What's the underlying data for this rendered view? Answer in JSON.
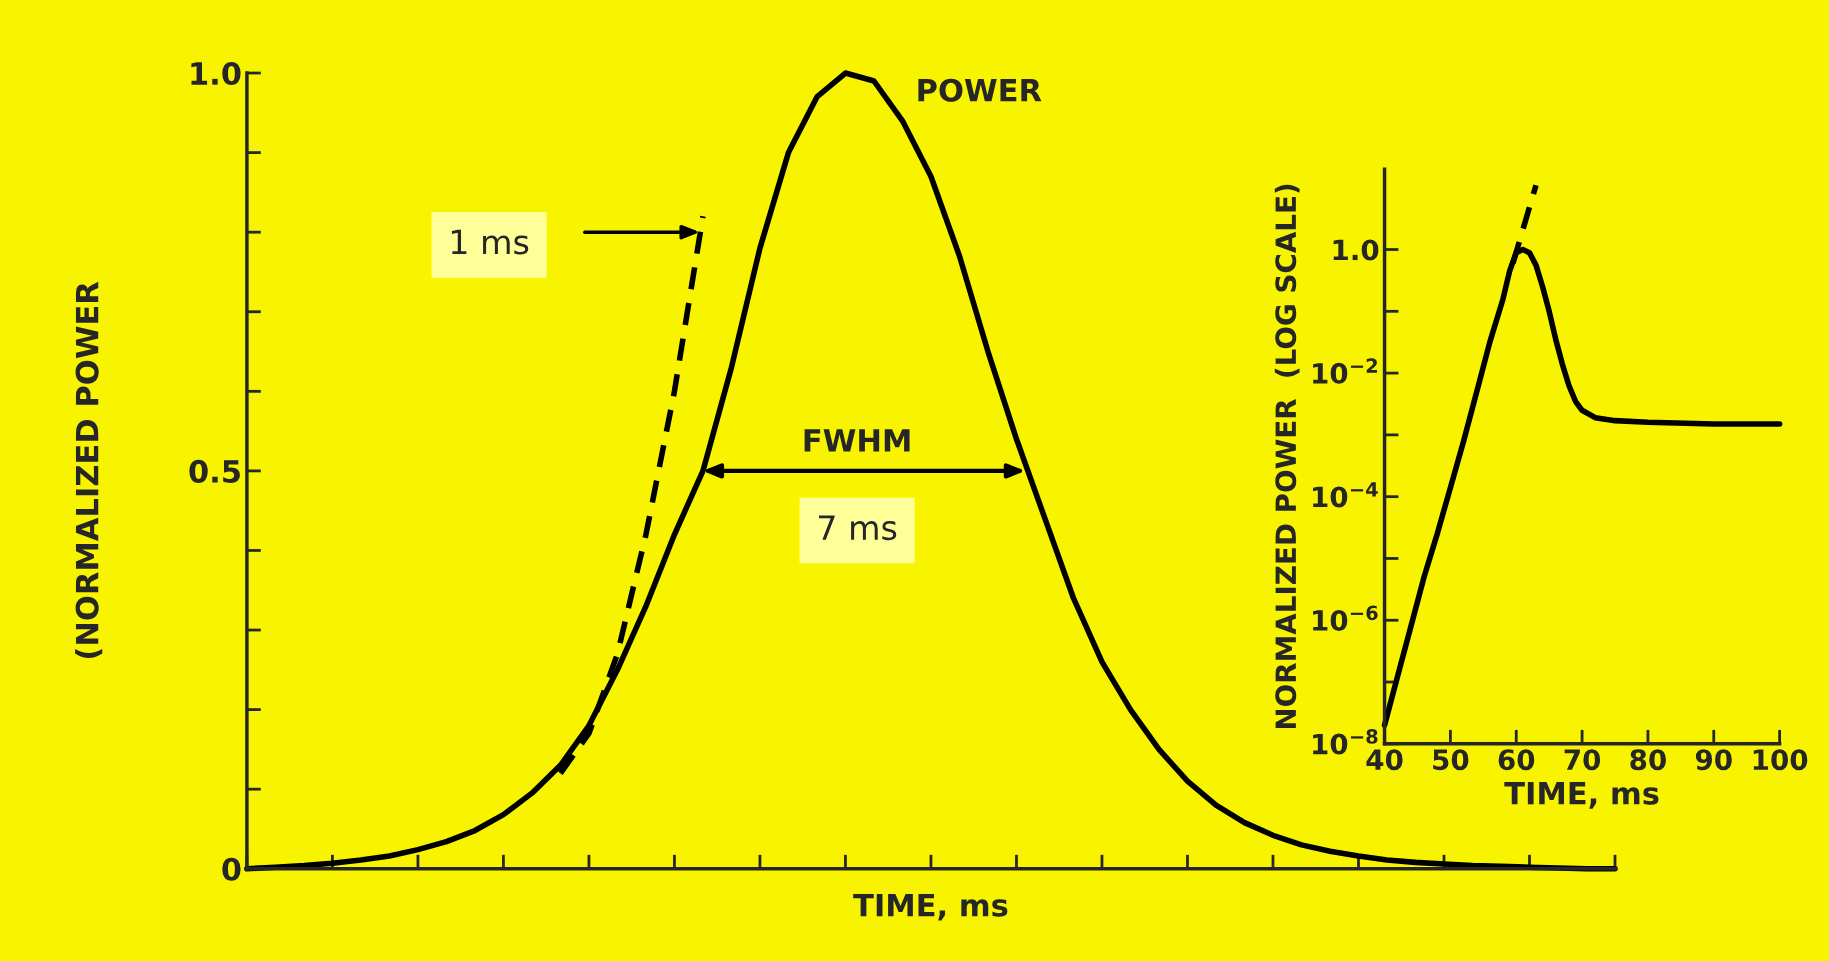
{
  "chart_data": [
    {
      "type": "line",
      "xlabel": "TIME, ms",
      "ylabel": "(NORMALIZED POWER",
      "categories": [
        null,
        null,
        null,
        null,
        null,
        null,
        null,
        null,
        null,
        null,
        null,
        null,
        null,
        null,
        null,
        null,
        null,
        null,
        null,
        null,
        null,
        null,
        null,
        null,
        null,
        null,
        null,
        null,
        null,
        null,
        null,
        null,
        null,
        null,
        null,
        null,
        null,
        null,
        null,
        null,
        null,
        null,
        null,
        null,
        null,
        null,
        null,
        null,
        null
      ],
      "series": [
        {
          "color": "#000000",
          "line_style": "solid",
          "values": [
            0.0,
            0.002,
            0.004,
            0.007,
            0.011,
            0.016,
            0.024,
            0.034,
            0.048,
            0.068,
            0.095,
            0.13,
            0.18,
            0.25,
            0.33,
            0.42,
            0.5,
            0.63,
            0.78,
            0.9,
            0.97,
            1.0,
            0.99,
            0.94,
            0.87,
            0.77,
            0.65,
            0.54,
            0.44,
            0.34,
            0.26,
            0.2,
            0.15,
            0.11,
            0.08,
            0.058,
            0.042,
            0.03,
            0.022,
            0.016,
            0.011,
            0.008,
            0.006,
            0.004,
            0.003,
            0.002,
            0.001,
            0.0,
            0.0
          ]
        },
        {
          "color": "#000000",
          "line_style": "dashed",
          "values": [
            null,
            null,
            null,
            null,
            null,
            null,
            null,
            null,
            null,
            null,
            null,
            0.12,
            0.17,
            0.27,
            0.42,
            0.6,
            0.82,
            null,
            null,
            null,
            null,
            null,
            null,
            null,
            null,
            null,
            null,
            null,
            null,
            null,
            null,
            null,
            null,
            null,
            null,
            null,
            null,
            null,
            null,
            null,
            null,
            null,
            null,
            null,
            null,
            null,
            null,
            null,
            null
          ]
        }
      ],
      "ylim": [
        0,
        1
      ],
      "yticks": [
        0,
        {
          "value": 0.1,
          "label": null
        },
        {
          "value": 0.2,
          "label": null
        },
        {
          "value": 0.3,
          "label": null
        },
        {
          "value": 0.4,
          "label": null
        },
        {
          "value": 0.5,
          "label": "0.5"
        },
        {
          "value": 0.6,
          "label": null
        },
        {
          "value": 0.7,
          "label": null
        },
        {
          "value": 0.8,
          "label": null
        },
        {
          "value": 0.9,
          "label": null
        },
        {
          "value": 1,
          "label": "1.0"
        }
      ],
      "annotations": [
        "POWER",
        "1 ms",
        "FWHM",
        "7 ms"
      ],
      "grid": false,
      "legend": false
    },
    {
      "type": "line",
      "xlabel": "TIME, ms",
      "ylabel": "NORMALIZED POWER  (LOG SCALE)",
      "log": "y",
      "series": [
        {
          "color": "#000000",
          "line_style": "solid",
          "x": [
            40,
            42,
            44,
            46,
            48,
            50,
            52,
            54,
            56,
            58,
            59,
            60,
            61,
            62,
            63,
            64,
            65,
            66,
            67,
            68,
            69,
            70,
            72,
            75,
            80,
            90,
            100
          ],
          "values": [
            2e-08,
            1.26e-07,
            7.9e-07,
            5e-06,
            2.5e-05,
            0.00014,
            0.00079,
            0.005,
            0.032,
            0.16,
            0.45,
            0.89,
            1.0,
            0.89,
            0.56,
            0.25,
            0.1,
            0.035,
            0.014,
            0.0063,
            0.0035,
            0.0025,
            0.0019,
            0.0017,
            0.0016,
            0.0015,
            0.0015
          ]
        },
        {
          "color": "#000000",
          "line_style": "dashed",
          "x": [
            59.5,
            63
          ],
          "values": [
            0.6,
            11
          ]
        }
      ],
      "xlim": [
        40,
        100
      ],
      "xticks": [
        40,
        50,
        60,
        70,
        80,
        90,
        100
      ],
      "ylim": [
        1e-08,
        20
      ],
      "yticks": [
        {
          "value": 1e-08,
          "label": "10$^{−8}$"
        },
        {
          "value": 1e-07,
          "label": null
        },
        {
          "value": 1e-06,
          "label": "10$^{−6}$"
        },
        {
          "value": 1e-05,
          "label": null
        },
        {
          "value": 0.0001,
          "label": "10$^{−4}$"
        },
        {
          "value": 0.001,
          "label": null
        },
        {
          "value": 0.01,
          "label": "10$^{−2}$"
        },
        {
          "value": 0.1,
          "label": null
        },
        {
          "value": 1,
          "label": "1.0"
        }
      ],
      "grid": false,
      "legend": false
    }
  ]
}
